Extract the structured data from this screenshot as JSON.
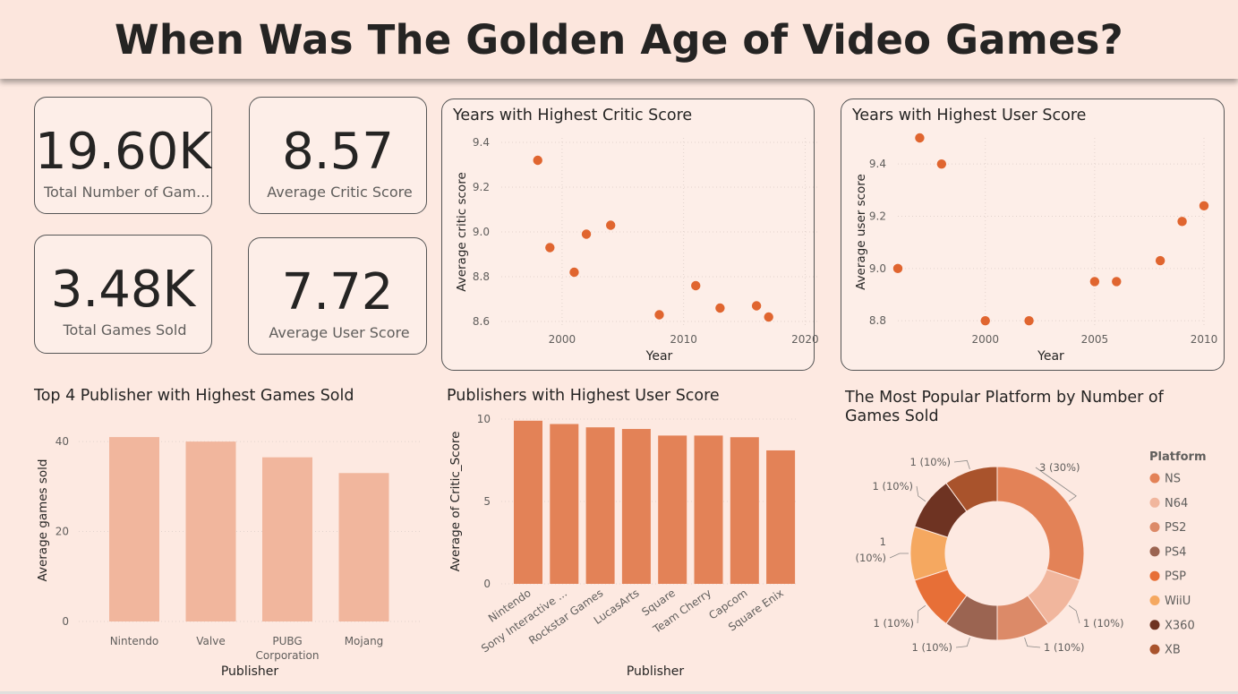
{
  "title": "When Was The Golden Age of Video Games?",
  "kpis": {
    "total_games": {
      "value": "19.60K",
      "label": "Total Number of Gam..."
    },
    "avg_critic": {
      "value": "8.57",
      "label": "Average Critic Score"
    },
    "total_sold": {
      "value": "3.48K",
      "label": "Total Games Sold"
    },
    "avg_user": {
      "value": "7.72",
      "label": "Average User Score"
    }
  },
  "colors": {
    "accent": "#e0652f",
    "bar_light": "#f1b69d",
    "bar_mid": "#e38257"
  },
  "chart_data": [
    {
      "type": "scatter",
      "title": "Years with Highest Critic Score",
      "xlabel": "Year",
      "ylabel": "Average critic score",
      "xlim": [
        1995,
        2021
      ],
      "ylim": [
        8.58,
        9.42
      ],
      "xticks": [
        "2000",
        "2010",
        "2020"
      ],
      "xtick_values": [
        2000,
        2010,
        2020
      ],
      "yticks": [
        "9.4",
        "9.2",
        "9.0",
        "8.8",
        "8.6"
      ],
      "ytick_values": [
        9.4,
        9.2,
        9.0,
        8.8,
        8.6
      ],
      "x": [
        1998,
        1999,
        2001,
        2002,
        2004,
        2008,
        2011,
        2013,
        2016,
        2017
      ],
      "y": [
        9.32,
        8.93,
        8.82,
        8.99,
        9.03,
        8.63,
        8.76,
        8.66,
        8.67,
        8.62
      ]
    },
    {
      "type": "scatter",
      "title": "Years with Highest User Score",
      "xlabel": "Year",
      "ylabel": "Average user score",
      "xlim": [
        1996,
        2010
      ],
      "ylim": [
        8.78,
        9.5
      ],
      "xticks": [
        "2000",
        "2005",
        "2010"
      ],
      "xtick_values": [
        2000,
        2005,
        2010
      ],
      "yticks": [
        "9.4",
        "9.2",
        "9.0",
        "8.8"
      ],
      "ytick_values": [
        9.4,
        9.2,
        9.0,
        8.8
      ],
      "x": [
        1996,
        1997,
        1998,
        2000,
        2002,
        2005,
        2006,
        2008,
        2009,
        2010
      ],
      "y": [
        9.0,
        9.5,
        9.4,
        8.8,
        8.8,
        8.95,
        8.95,
        9.03,
        9.18,
        9.24
      ]
    },
    {
      "type": "bar",
      "title": "Top 4 Publisher with Highest Games Sold",
      "xlabel": "Publisher",
      "ylabel": "Average games sold",
      "ylim": [
        0,
        45
      ],
      "yticks": [
        "40",
        "20",
        "0"
      ],
      "ytick_values": [
        40,
        20,
        0
      ],
      "categories": [
        "Nintendo",
        "Valve",
        "PUBG Corporation",
        "Mojang"
      ],
      "values": [
        41,
        40,
        36.5,
        33
      ]
    },
    {
      "type": "bar",
      "title": "Publishers with Highest User Score",
      "xlabel": "Publisher",
      "ylabel": "Average of Critic_Score",
      "ylim": [
        0,
        10
      ],
      "yticks": [
        "10",
        "5",
        "0"
      ],
      "ytick_values": [
        10,
        5,
        0
      ],
      "categories": [
        "Nintendo",
        "Sony Interactive ...",
        "Rockstar Games",
        "LucasArts",
        "Square",
        "Team Cherry",
        "Capcom",
        "Square Enix"
      ],
      "values": [
        9.9,
        9.7,
        9.5,
        9.4,
        9.0,
        9.0,
        8.9,
        8.1
      ]
    },
    {
      "type": "pie",
      "title": "The Most Popular Platform by Number of Games Sold",
      "legend_title": "Platform",
      "categories": [
        "NS",
        "N64",
        "PS2",
        "PS4",
        "PSP",
        "WiiU",
        "X360",
        "XB"
      ],
      "values": [
        3,
        1,
        1,
        1,
        1,
        1,
        1,
        1
      ],
      "labels": [
        "3 (30%)",
        "1 (10%)",
        "1 (10%)",
        "1 (10%)",
        "1 (10%)",
        "1 (10%)",
        "1 (10%)",
        "1 (10%)"
      ],
      "colors": [
        "#e38257",
        "#f1b69d",
        "#dc8a68",
        "#9b6451",
        "#e76f37",
        "#f5a860",
        "#6e3322",
        "#a9532c"
      ]
    }
  ]
}
